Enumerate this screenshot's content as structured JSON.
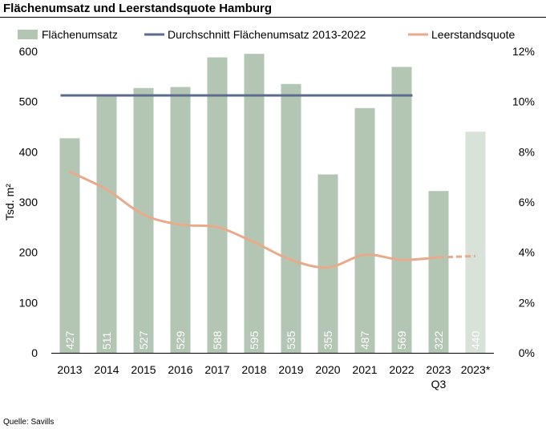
{
  "title": "Flächenumsatz und Leerstandsquote Hamburg",
  "source": "Quelle: Savills",
  "chart_data": {
    "type": "bar",
    "categories": [
      {
        "label": "2013",
        "sublabel": ""
      },
      {
        "label": "2014",
        "sublabel": ""
      },
      {
        "label": "2015",
        "sublabel": ""
      },
      {
        "label": "2016",
        "sublabel": ""
      },
      {
        "label": "2017",
        "sublabel": ""
      },
      {
        "label": "2018",
        "sublabel": ""
      },
      {
        "label": "2019",
        "sublabel": ""
      },
      {
        "label": "2020",
        "sublabel": ""
      },
      {
        "label": "2021",
        "sublabel": ""
      },
      {
        "label": "2022",
        "sublabel": ""
      },
      {
        "label": "2023",
        "sublabel": "Q3"
      },
      {
        "label": "2023*",
        "sublabel": ""
      }
    ],
    "ylabel": "Tsd. m²",
    "ylim": [
      0,
      600
    ],
    "yticks": [
      "0",
      "100",
      "200",
      "300",
      "400",
      "500",
      "600"
    ],
    "y2lim": [
      0,
      12
    ],
    "y2ticks": [
      "0%",
      "2%",
      "4%",
      "6%",
      "8%",
      "10%",
      "12%"
    ],
    "legend_position": "top",
    "grid": false,
    "series": [
      {
        "name": "Flächenumsatz",
        "type": "bar",
        "axis": "left",
        "color": "#b3c6b4",
        "forecast_color": "#d9e2d9",
        "values": [
          427,
          511,
          527,
          529,
          588,
          595,
          535,
          355,
          487,
          569,
          322,
          440
        ],
        "labels": [
          "427",
          "511",
          "527",
          "529",
          "588",
          "595",
          "535",
          "355",
          "487",
          "569",
          "322",
          "440"
        ],
        "label_color": "#ffffff"
      },
      {
        "name": "Durchschnitt Flächenumsatz 2013-2022",
        "type": "line",
        "axis": "left",
        "color": "#5c6b8c",
        "values": [
          512.3,
          512.3,
          512.3,
          512.3,
          512.3,
          512.3,
          512.3,
          512.3,
          512.3,
          512.3,
          null,
          null
        ]
      },
      {
        "name": "Leerstandsquote",
        "type": "line",
        "axis": "right",
        "color": "#e8aa8a",
        "values": [
          7.2,
          6.5,
          5.5,
          5.1,
          5.0,
          4.4,
          3.7,
          3.4,
          3.9,
          3.7,
          3.8,
          3.85
        ],
        "dashed_from_index": 10
      }
    ]
  }
}
